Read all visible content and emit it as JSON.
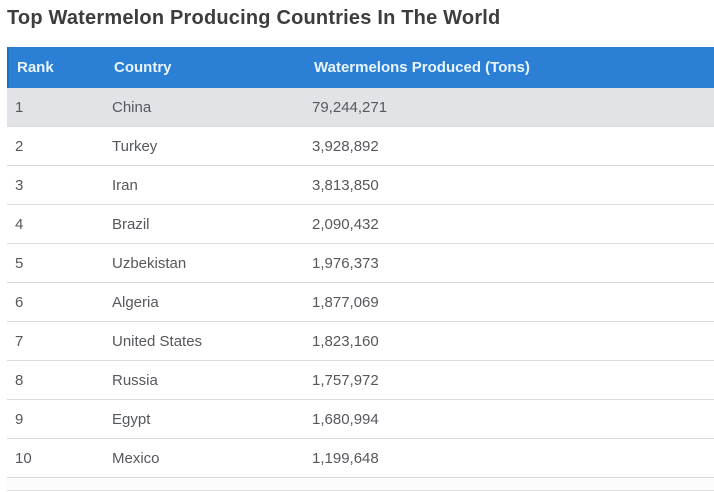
{
  "page": {
    "title": "Top Watermelon Producing Countries In The World"
  },
  "table": {
    "headers": [
      {
        "label": "Rank"
      },
      {
        "label": "Country"
      },
      {
        "label": "Watermelons Produced (Tons)"
      }
    ],
    "rows": [
      {
        "rank": "1",
        "country": "China",
        "produced_tons": "79,244,271",
        "highlighted": true
      },
      {
        "rank": "2",
        "country": "Turkey",
        "produced_tons": "3,928,892",
        "highlighted": false
      },
      {
        "rank": "3",
        "country": "Iran",
        "produced_tons": "3,813,850",
        "highlighted": false
      },
      {
        "rank": "4",
        "country": "Brazil",
        "produced_tons": "2,090,432",
        "highlighted": false
      },
      {
        "rank": "5",
        "country": "Uzbekistan",
        "produced_tons": "1,976,373",
        "highlighted": false
      },
      {
        "rank": "6",
        "country": "Algeria",
        "produced_tons": "1,877,069",
        "highlighted": false
      },
      {
        "rank": "7",
        "country": "United States",
        "produced_tons": "1,823,160",
        "highlighted": false
      },
      {
        "rank": "8",
        "country": "Russia",
        "produced_tons": "1,757,972",
        "highlighted": false
      },
      {
        "rank": "9",
        "country": "Egypt",
        "produced_tons": "1,680,994",
        "highlighted": false
      },
      {
        "rank": "10",
        "country": "Mexico",
        "produced_tons": "1,199,648",
        "highlighted": false
      }
    ]
  },
  "chart_data": {
    "type": "table",
    "title": "Top Watermelon Producing Countries In The World",
    "columns": [
      "Rank",
      "Country",
      "Watermelons Produced (Tons)"
    ],
    "categories": [
      "China",
      "Turkey",
      "Iran",
      "Brazil",
      "Uzbekistan",
      "Algeria",
      "United States",
      "Russia",
      "Egypt",
      "Mexico"
    ],
    "values": [
      79244271,
      3928892,
      3813850,
      2090432,
      1976373,
      1877069,
      1823160,
      1757972,
      1680994,
      1199648
    ]
  },
  "colors": {
    "header_bg": "#2b80d5",
    "header_border_left": "#2070c2",
    "header_text": "#e8f5fd",
    "highlight_row_bg": "#e2e3e6",
    "row_border": "#dadada",
    "title_text": "#3d3d3d",
    "body_text": "#55585c",
    "page_bg": "#ffffff"
  }
}
